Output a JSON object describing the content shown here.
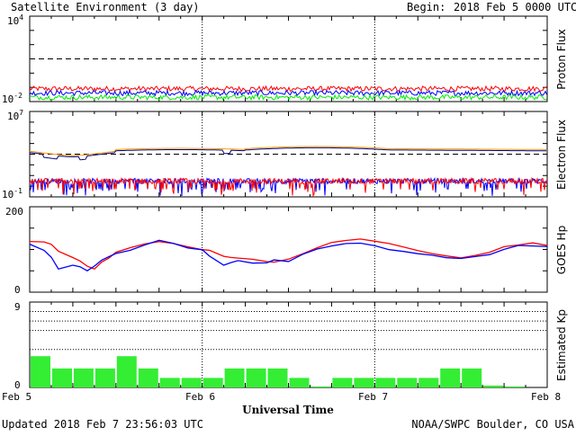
{
  "header": {
    "title": "Satellite Environment (3 day)",
    "begin_label": "Begin:",
    "begin_value": "2018 Feb 5 0000 UTC"
  },
  "footer": {
    "updated": "Updated 2018 Feb  7 23:56:03 UTC",
    "credit": "NOAA/SWPC Boulder, CO USA",
    "xlabel": "Universal Time"
  },
  "x_ticks": [
    "Feb 5",
    "Feb 6",
    "Feb 7",
    "Feb 8"
  ],
  "chart_data": [
    {
      "type": "line",
      "ylabel": "Proton Flux",
      "yscale": "log",
      "ylim": [
        0.01,
        10000
      ],
      "y_tick_labels": {
        "top_base": "10",
        "top_exp": "4",
        "bottom_base": "10",
        "bottom_exp": "-2"
      },
      "threshold": 10,
      "series": [
        {
          "color": "#ff0000",
          "level": 0.08
        },
        {
          "color": "#0000ff",
          "level": 0.04
        },
        {
          "color": "#00ee00",
          "level": 0.02
        }
      ]
    },
    {
      "type": "line",
      "ylabel": "Electron Flux",
      "yscale": "log",
      "ylim": [
        0.1,
        10000000
      ],
      "y_tick_labels": {
        "top_base": "10",
        "top_exp": "7",
        "bottom_base": "10",
        "bottom_exp": "-1"
      },
      "threshold": 1000,
      "series": [
        {
          "color": "#ff9900",
          "band": "high"
        },
        {
          "color": "#000080",
          "band": "high"
        },
        {
          "color": "#0000ff",
          "band": "low"
        },
        {
          "color": "#ff0000",
          "band": "low"
        }
      ]
    },
    {
      "type": "line",
      "ylabel": "GOES Hp",
      "ylim": [
        0,
        200
      ],
      "y_tick_labels": {
        "top": "200",
        "bottom": "0"
      },
      "x_hours": [
        0,
        2,
        3,
        4,
        6,
        7,
        8,
        9,
        10,
        11,
        12,
        14,
        16,
        18,
        20,
        22,
        24,
        25,
        27,
        28,
        29,
        31,
        33,
        34,
        36,
        38,
        40,
        42,
        44,
        46,
        48,
        50,
        52,
        54,
        56,
        58,
        60,
        62,
        64,
        66,
        68,
        70,
        72
      ],
      "series": [
        {
          "color": "#ff0000",
          "values": [
            120,
            118,
            110,
            95,
            80,
            75,
            60,
            55,
            70,
            80,
            95,
            105,
            112,
            118,
            115,
            108,
            100,
            98,
            85,
            82,
            80,
            78,
            72,
            72,
            78,
            90,
            105,
            115,
            120,
            123,
            120,
            112,
            105,
            98,
            90,
            85,
            80,
            85,
            95,
            105,
            112,
            115,
            110
          ]
        },
        {
          "color": "#0000ff",
          "values": [
            112,
            100,
            80,
            55,
            65,
            60,
            50,
            60,
            75,
            85,
            92,
            100,
            110,
            120,
            116,
            105,
            98,
            85,
            62,
            70,
            75,
            68,
            70,
            75,
            72,
            88,
            102,
            110,
            112,
            115,
            108,
            100,
            95,
            90,
            85,
            82,
            80,
            82,
            90,
            100,
            108,
            110,
            105
          ]
        }
      ]
    },
    {
      "type": "bar",
      "ylabel": "Estimated Kp",
      "ylim": [
        0,
        9
      ],
      "y_tick_labels": {
        "top": "9",
        "bottom": "0"
      },
      "gridlines": [
        4,
        6,
        7,
        8,
        9
      ],
      "color": "#33ee33",
      "interval_hours": 3,
      "values": [
        3.3,
        2.0,
        2.0,
        2.0,
        3.3,
        2.0,
        1.0,
        1.0,
        1.0,
        2.0,
        2.0,
        2.0,
        1.0,
        0.1,
        1.0,
        1.0,
        1.0,
        1.0,
        1.0,
        2.0,
        2.0,
        0.2,
        0.1,
        0
      ]
    }
  ]
}
